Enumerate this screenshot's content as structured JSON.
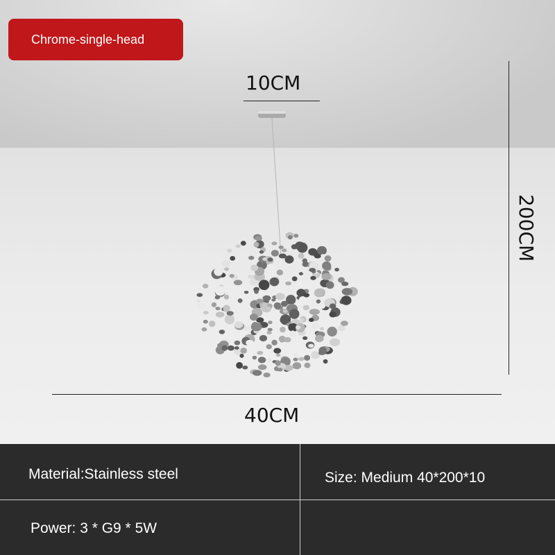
{
  "variant_label": "Chrome-single-head",
  "dimensions": {
    "top": "10CM",
    "height": "200CM",
    "width": "40CM"
  },
  "specs": {
    "material": "Material:Stainless steel",
    "size": "Size: Medium 40*200*10",
    "power": "Power: 3 * G9 * 5W"
  },
  "colors": {
    "label_bg": "#c0171a",
    "spec_bg": "#2c2b2b"
  }
}
